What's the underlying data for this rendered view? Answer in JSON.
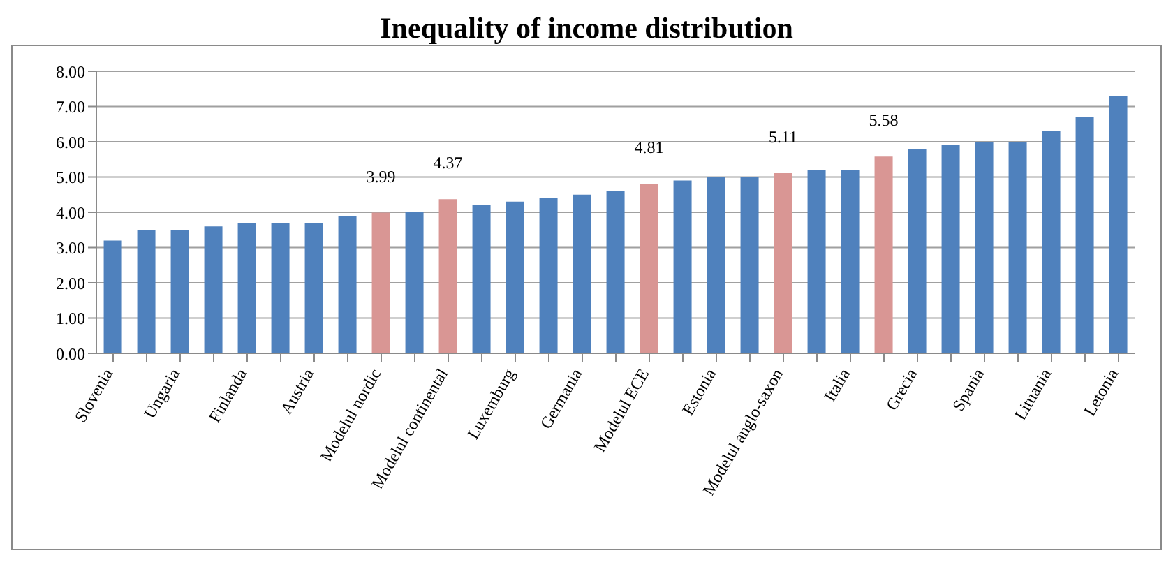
{
  "chart_data": {
    "type": "bar",
    "title": "Inequality of income distribution",
    "categories": [
      "Slovenia",
      null,
      "Ungaria",
      null,
      "Finlanda",
      null,
      "Austria",
      null,
      "Modelul nordic",
      null,
      "Modelul continental",
      null,
      "Luxemburg",
      null,
      "Germania",
      null,
      "Modelul ECE",
      null,
      "Estonia",
      null,
      "Modelul anglo-saxon",
      null,
      "Italia",
      null,
      "Grecia",
      null,
      "Spania",
      null,
      "Lituania",
      null,
      "Letonia"
    ],
    "values": [
      3.2,
      3.5,
      3.5,
      3.6,
      3.7,
      3.7,
      3.7,
      3.9,
      3.99,
      4.0,
      4.37,
      4.2,
      4.3,
      4.4,
      4.5,
      4.6,
      4.81,
      4.9,
      5.0,
      5.0,
      5.11,
      5.2,
      5.2,
      5.58,
      5.8,
      5.9,
      6.0,
      6.0,
      6.3,
      6.7,
      7.3
    ],
    "colors": [
      "#4f81bd",
      "#4f81bd",
      "#4f81bd",
      "#4f81bd",
      "#4f81bd",
      "#4f81bd",
      "#4f81bd",
      "#4f81bd",
      "#d99694",
      "#4f81bd",
      "#d99694",
      "#4f81bd",
      "#4f81bd",
      "#4f81bd",
      "#4f81bd",
      "#4f81bd",
      "#d99694",
      "#4f81bd",
      "#4f81bd",
      "#4f81bd",
      "#d99694",
      "#4f81bd",
      "#4f81bd",
      "#d99694",
      "#4f81bd",
      "#4f81bd",
      "#4f81bd",
      "#4f81bd",
      "#4f81bd",
      "#4f81bd",
      "#4f81bd"
    ],
    "value_labels": [
      null,
      null,
      null,
      null,
      null,
      null,
      null,
      null,
      "3.99",
      null,
      "4.37",
      null,
      null,
      null,
      null,
      null,
      "4.81",
      null,
      null,
      null,
      "5.11",
      null,
      null,
      "5.58",
      null,
      null,
      null,
      null,
      null,
      null,
      null
    ],
    "ylim": [
      0,
      8
    ],
    "yticks": [
      {
        "value": 0,
        "label": "0.00"
      },
      {
        "value": 1,
        "label": "1.00"
      },
      {
        "value": 2,
        "label": "2.00"
      },
      {
        "value": 3,
        "label": "3.00"
      },
      {
        "value": 4,
        "label": "4.00"
      },
      {
        "value": 5,
        "label": "5.00"
      },
      {
        "value": 6,
        "label": "6.00"
      },
      {
        "value": 7,
        "label": "7.00"
      },
      {
        "value": 8,
        "label": "8.00"
      }
    ],
    "grid": "y",
    "legend": false
  }
}
